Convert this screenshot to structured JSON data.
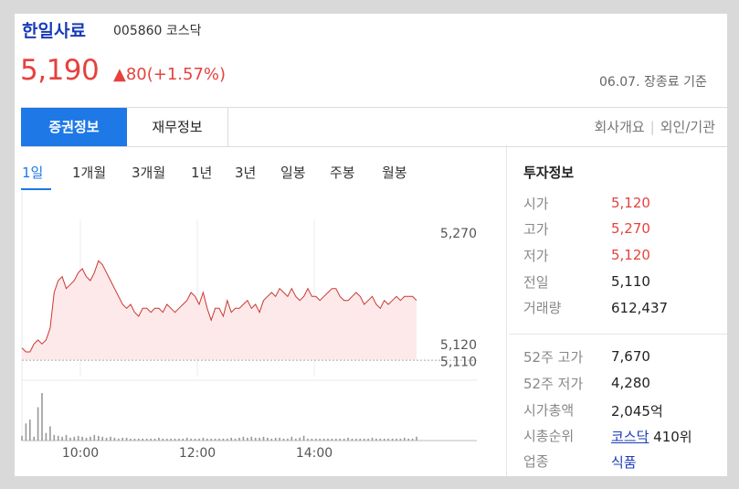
{
  "stock": {
    "name": "한일사료",
    "code_market": "005860 코스닥",
    "price": "5,190",
    "change": "▲80(+1.57%)",
    "basis": "06.07. 장종료 기준"
  },
  "tabs": {
    "securities": "증권정보",
    "financial": "재무정보",
    "company": "회사개요",
    "foreign": "외인/기관",
    "separator": "|"
  },
  "periods": [
    "1일",
    "1개월",
    "3개월",
    "1년",
    "3년",
    "일봉",
    "주봉",
    "월봉"
  ],
  "investment": {
    "title": "투자정보",
    "rows": [
      {
        "label": "시가",
        "value": "5,120"
      },
      {
        "label": "고가",
        "value": "5,270"
      },
      {
        "label": "저가",
        "value": "5,120"
      },
      {
        "label": "전일",
        "value": "5,110"
      },
      {
        "label": "거래량",
        "value": "612,437"
      }
    ],
    "rows2": [
      {
        "label": "52주 고가",
        "value": "7,670"
      },
      {
        "label": "52주 저가",
        "value": "4,280"
      },
      {
        "label": "시가총액",
        "value": "2,045억"
      },
      {
        "label": "시총순위",
        "value_link": "코스닥",
        "value_suffix": " 410위"
      },
      {
        "label": "업종",
        "value": "식품"
      }
    ]
  },
  "colors": {
    "accent": "#1e78e6",
    "up": "#e5423f",
    "title": "#1a3bb8"
  },
  "chart_data": {
    "type": "line",
    "xlabels": [
      "10:00",
      "12:00",
      "14:00"
    ],
    "x_times": [
      "09:00",
      "10:00",
      "12:00",
      "14:00",
      "15:30"
    ],
    "yticks": [
      "5,270",
      "5,120",
      "5,110"
    ],
    "ylim": [
      5100,
      5280
    ],
    "prev_close": 5110,
    "price_series": [
      5125,
      5120,
      5120,
      5130,
      5135,
      5130,
      5135,
      5150,
      5195,
      5210,
      5215,
      5200,
      5205,
      5210,
      5220,
      5225,
      5215,
      5210,
      5220,
      5235,
      5230,
      5220,
      5210,
      5200,
      5190,
      5180,
      5175,
      5180,
      5170,
      5165,
      5175,
      5175,
      5170,
      5175,
      5175,
      5170,
      5180,
      5175,
      5170,
      5175,
      5180,
      5185,
      5195,
      5190,
      5180,
      5195,
      5175,
      5160,
      5175,
      5175,
      5165,
      5185,
      5170,
      5175,
      5175,
      5180,
      5185,
      5175,
      5180,
      5170,
      5185,
      5190,
      5195,
      5190,
      5200,
      5195,
      5190,
      5200,
      5190,
      5185,
      5190,
      5200,
      5190,
      5190,
      5185,
      5190,
      5195,
      5200,
      5200,
      5190,
      5185,
      5185,
      5190,
      5195,
      5190,
      5180,
      5185,
      5190,
      5180,
      5175,
      5185,
      5180,
      5185,
      5190,
      5185,
      5190,
      5190,
      5190,
      5185
    ],
    "volume_series": [
      5,
      18,
      22,
      4,
      35,
      50,
      8,
      15,
      6,
      5,
      4,
      6,
      3,
      4,
      5,
      4,
      3,
      4,
      6,
      5,
      4,
      3,
      4,
      3,
      2,
      3,
      3,
      2,
      2,
      2,
      2,
      2,
      2,
      2,
      3,
      2,
      2,
      2,
      2,
      2,
      2,
      3,
      2,
      2,
      2,
      3,
      2,
      2,
      2,
      2,
      2,
      2,
      3,
      2,
      3,
      4,
      3,
      4,
      3,
      3,
      4,
      3,
      2,
      3,
      3,
      2,
      2,
      4,
      2,
      3,
      5,
      2,
      2,
      2,
      2,
      2,
      2,
      2,
      2,
      2,
      2,
      3,
      2,
      2,
      2,
      2,
      2,
      3,
      2,
      2,
      2,
      2,
      2,
      2,
      2,
      3,
      2,
      2,
      4
    ]
  }
}
